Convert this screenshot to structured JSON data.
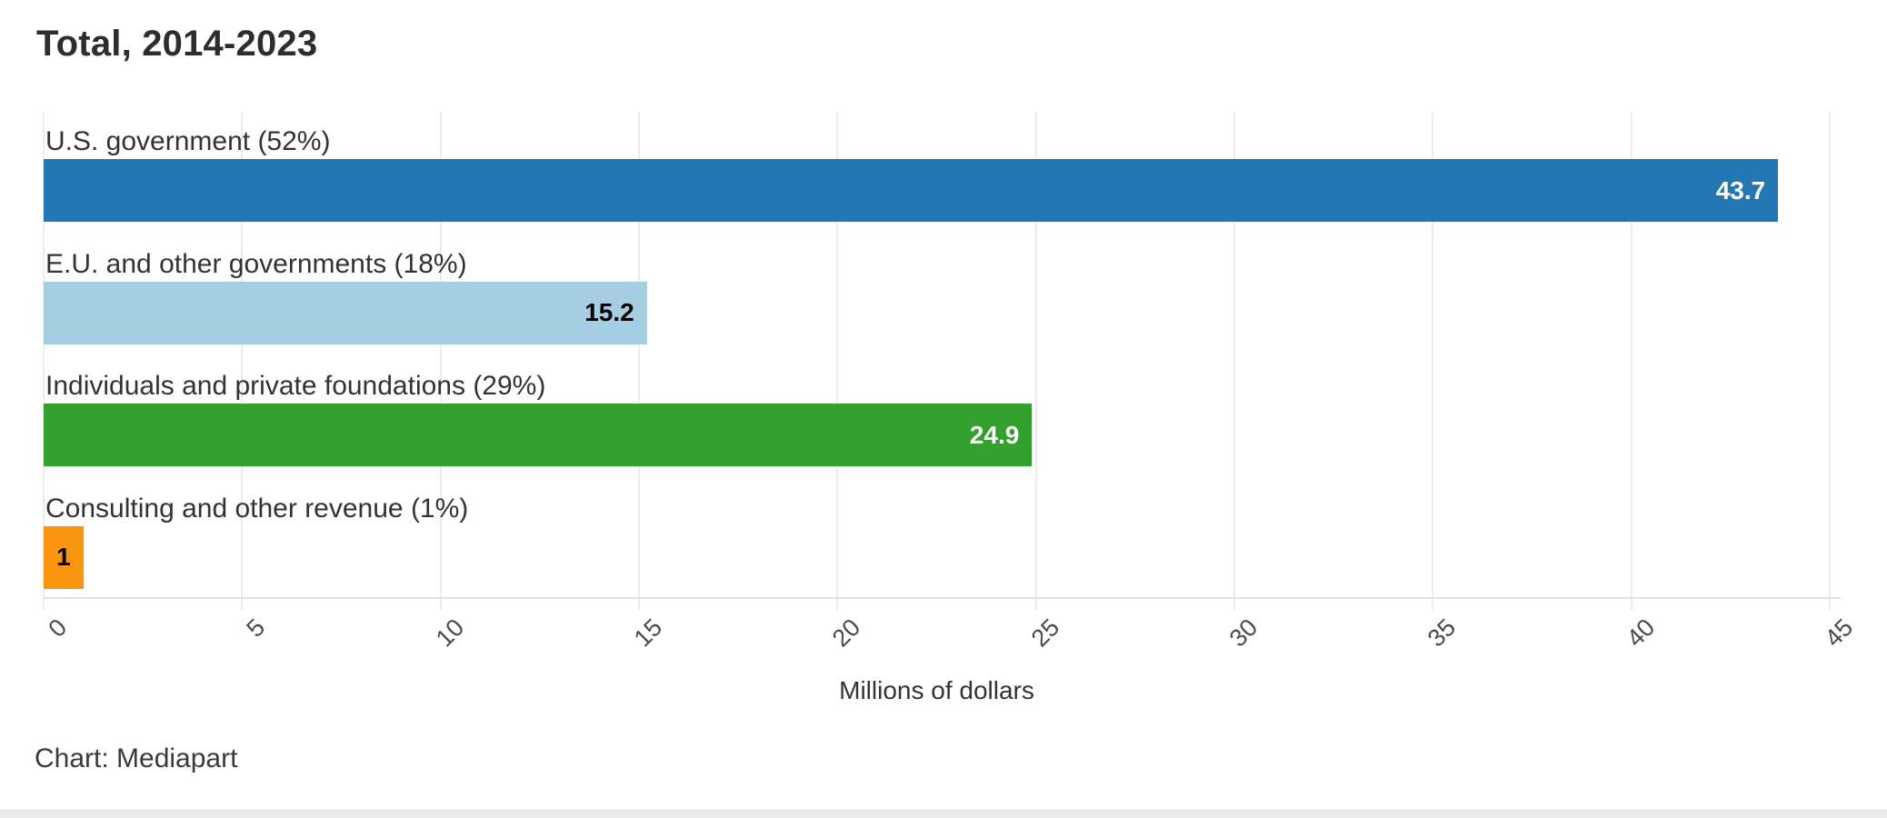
{
  "title": "Total, 2014-2023",
  "source": "Chart: Mediapart",
  "chart_data": {
    "type": "bar",
    "orientation": "horizontal",
    "title": "Total, 2014-2023",
    "categories": [
      "U.S. government (52%)",
      "E.U. and other governments (18%)",
      "Individuals and private foundations (29%)",
      "Consulting and other revenue (1%)"
    ],
    "values": [
      43.7,
      15.2,
      24.9,
      1
    ],
    "value_labels": [
      "43.7",
      "15.2",
      "24.9",
      "1"
    ],
    "bar_colors": [
      "#2378b4",
      "#a6cee3",
      "#32a02c",
      "#f9950f"
    ],
    "value_label_colors": [
      "#ffffff",
      "#000000",
      "#ffffff",
      "#000000"
    ],
    "xlabel": "Millions of dollars",
    "x_ticks": [
      0,
      5,
      10,
      15,
      20,
      25,
      30,
      35,
      40,
      45
    ],
    "xlim": [
      0,
      45
    ],
    "grid": true,
    "gridline_color": "#ececec",
    "legend": "none",
    "footer": "Chart: Mediapart"
  }
}
